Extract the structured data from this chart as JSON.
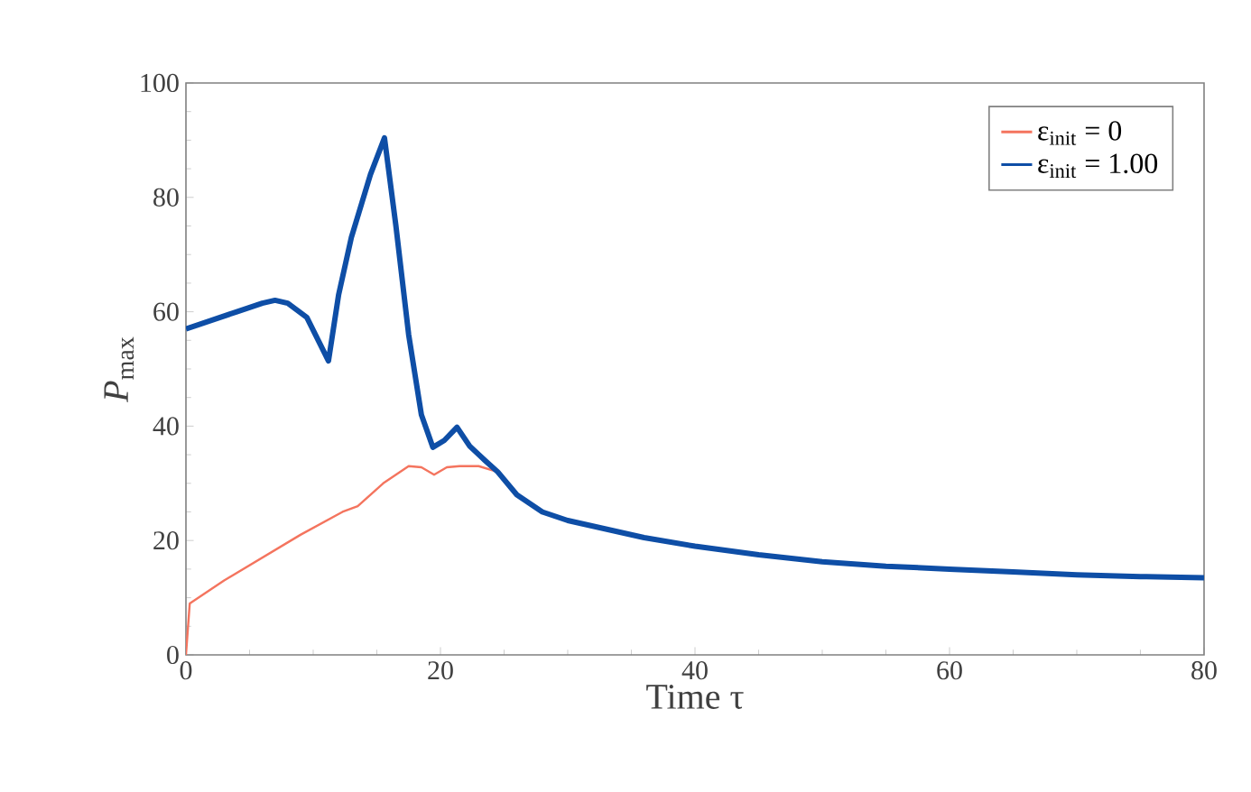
{
  "chart_data": {
    "type": "line",
    "xlabel": "Time τ",
    "ylabel": "*P*$_{max}$",
    "xlim": [
      0,
      80
    ],
    "ylim": [
      0,
      100
    ],
    "xticks": [
      0,
      20,
      40,
      60,
      80
    ],
    "yticks": [
      0,
      20,
      40,
      60,
      80,
      100
    ],
    "legend": "top right",
    "grid": false,
    "series": [
      {
        "name": "ε$_{init}$ = 0",
        "color": "#f4745e",
        "x": [
          0,
          0.3,
          3,
          6,
          9,
          12.3,
          13.5,
          15.5,
          17.5,
          18.5,
          19.5,
          20.5,
          21.5,
          23,
          24.5
        ],
        "values": [
          0,
          9,
          13,
          17,
          21,
          25,
          26,
          30,
          33,
          32.8,
          31.5,
          32.8,
          33,
          33,
          32
        ]
      },
      {
        "name": "ε$_{init}$ = 1.00",
        "color": "#0e4ea6",
        "x": [
          0,
          2,
          4,
          6,
          7,
          8,
          9.5,
          11.2,
          12,
          13,
          14.5,
          15.6,
          16.5,
          17.5,
          18.5,
          19.4,
          20.3,
          21.3,
          22.3,
          23.5,
          24.5,
          26,
          28,
          30,
          33,
          36,
          40,
          45,
          50,
          55,
          60,
          65,
          70,
          75,
          80
        ],
        "values": [
          57,
          58.5,
          60,
          61.5,
          62,
          61.5,
          59,
          51.4,
          63,
          73,
          84,
          90.4,
          75,
          56,
          42,
          36.3,
          37.5,
          39.8,
          36.5,
          34,
          32,
          28,
          25,
          23.5,
          22,
          20.5,
          19,
          17.5,
          16.3,
          15.5,
          15,
          14.5,
          14,
          13.7,
          13.5
        ]
      }
    ]
  }
}
